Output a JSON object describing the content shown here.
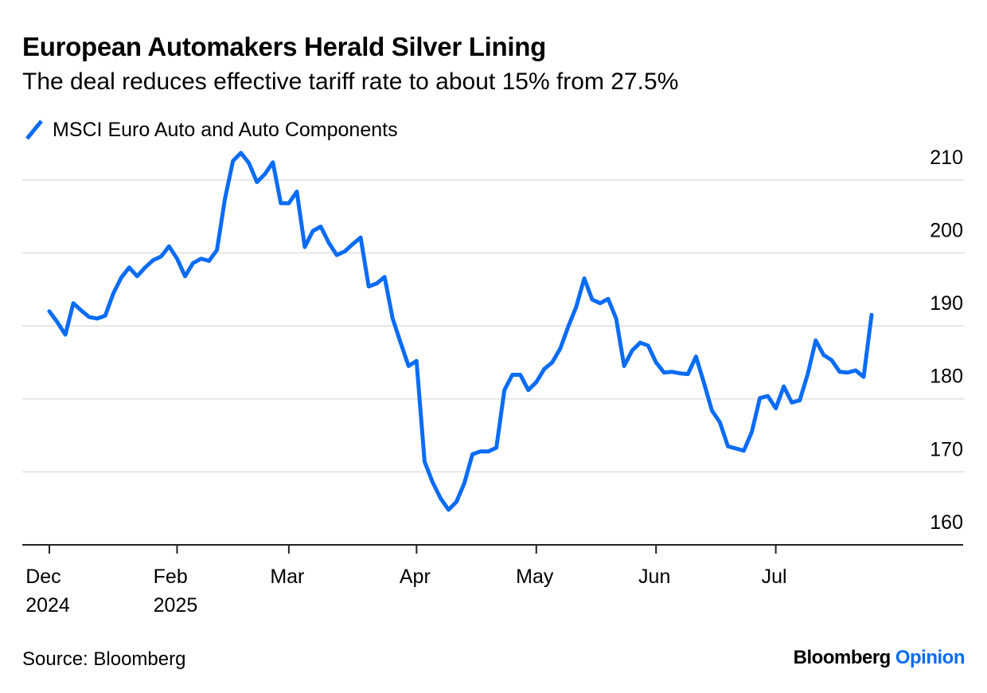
{
  "chart_data": {
    "type": "line",
    "title": "European Automakers Herald Silver Lining",
    "subtitle": "The deal reduces effective tariff rate to about 15% from 27.5%",
    "source": "Source: Bloomberg",
    "brand": {
      "name": "Bloomberg",
      "suffix": "Opinion"
    },
    "categories": [
      "Dec\n2024",
      null,
      null,
      null,
      null,
      null,
      null,
      null,
      null,
      null,
      null,
      null,
      null,
      null,
      null,
      null,
      "Feb\n2025",
      null,
      null,
      null,
      null,
      null,
      null,
      null,
      null,
      null,
      null,
      null,
      null,
      null,
      "Mar",
      null,
      null,
      null,
      null,
      null,
      null,
      null,
      null,
      null,
      null,
      null,
      null,
      null,
      null,
      null,
      "Apr",
      null,
      null,
      null,
      null,
      null,
      null,
      null,
      null,
      null,
      null,
      null,
      null,
      null,
      null,
      "May",
      null,
      null,
      null,
      null,
      null,
      null,
      null,
      null,
      null,
      null,
      null,
      null,
      null,
      null,
      "Jun",
      null,
      null,
      null,
      null,
      null,
      null,
      null,
      null,
      null,
      null,
      null,
      null,
      null,
      null,
      "Jul",
      null,
      null,
      null,
      null,
      null,
      null,
      null,
      null,
      null,
      null,
      null,
      null
    ],
    "series": [
      {
        "name": "MSCI Euro Auto and Auto Components",
        "color": "#0a6cf5",
        "values": [
          192.0,
          190.5,
          188.8,
          193.1,
          192.1,
          191.2,
          191.0,
          191.4,
          194.4,
          196.6,
          198.0,
          196.8,
          198.0,
          199.0,
          199.5,
          200.9,
          199.2,
          196.8,
          198.6,
          199.2,
          198.9,
          200.4,
          207.4,
          212.6,
          213.7,
          212.3,
          209.7,
          210.8,
          212.4,
          206.8,
          206.8,
          208.4,
          200.8,
          203.0,
          203.6,
          201.4,
          199.7,
          200.2,
          201.2,
          202.1,
          195.4,
          195.8,
          196.7,
          191.0,
          187.7,
          184.5,
          185.2,
          171.4,
          168.6,
          166.4,
          164.8,
          165.9,
          168.5,
          172.4,
          172.8,
          172.8,
          173.3,
          181.2,
          183.3,
          183.3,
          181.2,
          182.3,
          184.1,
          185.0,
          186.9,
          189.9,
          192.6,
          196.5,
          193.6,
          193.1,
          193.7,
          191.0,
          184.5,
          186.6,
          187.7,
          187.3,
          185.0,
          183.6,
          183.7,
          183.5,
          183.4,
          185.8,
          182.2,
          178.4,
          176.8,
          173.5,
          173.2,
          172.9,
          175.5,
          180.1,
          180.4,
          178.7,
          181.7,
          179.5,
          179.8,
          183.4,
          188.0,
          186.0,
          185.3,
          183.7,
          183.6,
          183.9,
          183.0,
          191.5
        ]
      }
    ],
    "ylim": [
      160,
      215
    ],
    "yticks": [
      160,
      170,
      180,
      190,
      200,
      210
    ],
    "grid": true
  }
}
